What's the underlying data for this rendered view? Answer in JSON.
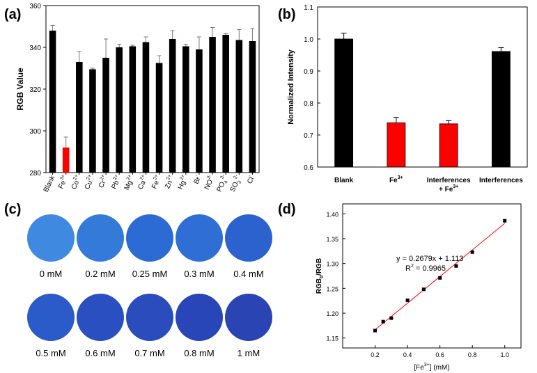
{
  "panels": {
    "a": "(a)",
    "b": "(b)",
    "c": "(c)",
    "d": "(d)"
  },
  "chart_data": [
    {
      "panel": "a",
      "type": "bar",
      "ylabel": "RGB Value",
      "ylim": [
        280,
        360
      ],
      "yticks": [
        "280",
        "300",
        "320",
        "340",
        "360"
      ],
      "categories": [
        {
          "name": "Blank",
          "sup": ""
        },
        {
          "name": "Fe",
          "sup": "3+"
        },
        {
          "name": "Co",
          "sup": "2+"
        },
        {
          "name": "Cu",
          "sup": "2+"
        },
        {
          "name": "Cr",
          "sup": "2+"
        },
        {
          "name": "Pb",
          "sup": "2+"
        },
        {
          "name": "Mg",
          "sup": "2+"
        },
        {
          "name": "Ca",
          "sup": "2+"
        },
        {
          "name": "Fe",
          "sup": "2+"
        },
        {
          "name": "Zn",
          "sup": "2+"
        },
        {
          "name": "Hg",
          "sup": "2+"
        },
        {
          "name": "Br",
          "sup": "-"
        },
        {
          "name": "NO",
          "sup": "3-"
        },
        {
          "name": "PO",
          "sup": "3-",
          "sub": "4"
        },
        {
          "name": "SO",
          "sup": "2-",
          "sub": "3"
        },
        {
          "name": "Cl",
          "sup": "-"
        }
      ],
      "values": [
        348,
        292,
        333,
        329.5,
        335,
        340,
        340.5,
        342.5,
        332.5,
        344,
        340.5,
        339,
        345,
        346,
        343.5,
        343
      ],
      "errors": [
        2.5,
        5,
        5,
        0.5,
        9,
        1.5,
        0.5,
        2.5,
        3.5,
        4,
        1,
        6,
        4.5,
        0.5,
        5,
        6
      ],
      "colors": [
        "#000000",
        "#ff0000",
        "#000000",
        "#000000",
        "#000000",
        "#000000",
        "#000000",
        "#000000",
        "#000000",
        "#000000",
        "#000000",
        "#000000",
        "#000000",
        "#000000",
        "#000000",
        "#000000"
      ]
    },
    {
      "panel": "b",
      "type": "bar",
      "ylabel": "Normalized Intensity",
      "ylim": [
        0.6,
        1.1
      ],
      "yticks": [
        "0.6",
        "0.7",
        "0.8",
        "0.9",
        "1.0",
        "1.1"
      ],
      "categories": [
        {
          "line1": "Blank",
          "line2": ""
        },
        {
          "line1": "Fe",
          "sup1": "3+",
          "line2": ""
        },
        {
          "line1": "Interferences",
          "line2": "+ Fe",
          "sup2": "3+"
        },
        {
          "line1": "Interferences",
          "line2": ""
        }
      ],
      "values": [
        1.0,
        0.738,
        0.735,
        0.961
      ],
      "errors": [
        0.018,
        0.017,
        0.01,
        0.012
      ],
      "colors": [
        "#000000",
        "#ff0000",
        "#ff0000",
        "#000000"
      ]
    },
    {
      "panel": "d",
      "type": "scatter",
      "xlabel": "[Fe3+] (mM)",
      "xlabel_parts": {
        "pre": "[Fe",
        "sup": "3+",
        "post": "] (mM)"
      },
      "ylabel_parts": {
        "pre": "RGB",
        "sub": "0",
        "post": "/RGB"
      },
      "xlim": [
        0.0,
        1.1
      ],
      "ylim": [
        1.13,
        1.42
      ],
      "xticks": [
        "0.2",
        "0.4",
        "0.6",
        "0.8",
        "1.0"
      ],
      "yticks": [
        "1.15",
        "1.20",
        "1.25",
        "1.30",
        "1.35",
        "1.40"
      ],
      "x": [
        0.2,
        0.25,
        0.3,
        0.4,
        0.5,
        0.6,
        0.7,
        0.8,
        1.0
      ],
      "y": [
        1.165,
        1.183,
        1.19,
        1.226,
        1.248,
        1.271,
        1.295,
        1.323,
        1.386
      ],
      "fit": {
        "slope": 0.2679,
        "intercept": 1.113,
        "color": "#ff0000"
      },
      "equation": "y = 0.2679x + 1.113",
      "r2_parts": {
        "pre": "R",
        "sup": "2",
        "post": " = 0.9965"
      }
    }
  ],
  "panel_c": {
    "samples": [
      {
        "label": "0 mM",
        "color": "#3f8ae0"
      },
      {
        "label": "0.2 mM",
        "color": "#337ad9"
      },
      {
        "label": "0.25 mM",
        "color": "#2c6bd3"
      },
      {
        "label": "0.3 mM",
        "color": "#2f6ed4"
      },
      {
        "label": "0.4 mM",
        "color": "#2b62ce"
      },
      {
        "label": "0.5 mM",
        "color": "#2a5bc9"
      },
      {
        "label": "0.6 mM",
        "color": "#2a4fc0"
      },
      {
        "label": "0.7 mM",
        "color": "#2b4cbd"
      },
      {
        "label": "0.8 mM",
        "color": "#2846b8"
      },
      {
        "label": "1 mM",
        "color": "#2a44b3"
      }
    ]
  }
}
